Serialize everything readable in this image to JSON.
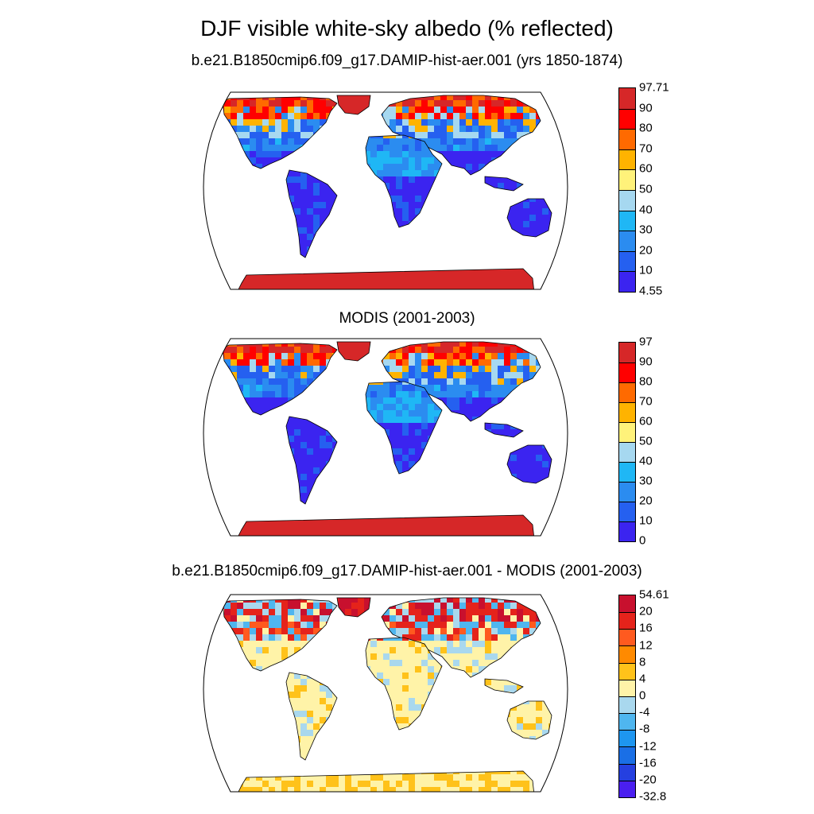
{
  "title": "DJF visible white-sky albedo (% reflected)",
  "panels": [
    {
      "title": "b.e21.B1850cmip6.f09_g17.DAMIP-hist-aer.001 (yrs 1850-1874)",
      "colorbar": {
        "labels": [
          "97.71",
          "90",
          "80",
          "70",
          "60",
          "50",
          "40",
          "30",
          "20",
          "10",
          "4.55"
        ],
        "colors": [
          "#d62728",
          "#ff0000",
          "#ff6a00",
          "#ffb300",
          "#fff27a",
          "#a6d8f0",
          "#1fb7f5",
          "#2b8cf0",
          "#2560f0",
          "#3b24f0"
        ]
      }
    },
    {
      "title": "MODIS (2001-2003)",
      "colorbar": {
        "labels": [
          "97",
          "90",
          "80",
          "70",
          "60",
          "50",
          "40",
          "30",
          "20",
          "10",
          "0"
        ],
        "colors": [
          "#d62728",
          "#ff0000",
          "#ff6a00",
          "#ffb300",
          "#fff27a",
          "#a6d8f0",
          "#1fb7f5",
          "#2b8cf0",
          "#2560f0",
          "#3b24f0"
        ]
      }
    },
    {
      "title": "b.e21.B1850cmip6.f09_g17.DAMIP-hist-aer.001 - MODIS (2001-2003)",
      "colorbar": {
        "labels": [
          "54.61",
          "20",
          "16",
          "12",
          "8",
          "4",
          "0",
          "-4",
          "-8",
          "-12",
          "-16",
          "-20",
          "-32.8"
        ],
        "colors": [
          "#c8102e",
          "#e5231b",
          "#ff5a1f",
          "#ff8a00",
          "#ffc21a",
          "#fff3a8",
          "#a9d8ee",
          "#4fb6ef",
          "#1e96f0",
          "#1a6fe6",
          "#2540e0",
          "#4a1ff0"
        ]
      }
    }
  ]
}
